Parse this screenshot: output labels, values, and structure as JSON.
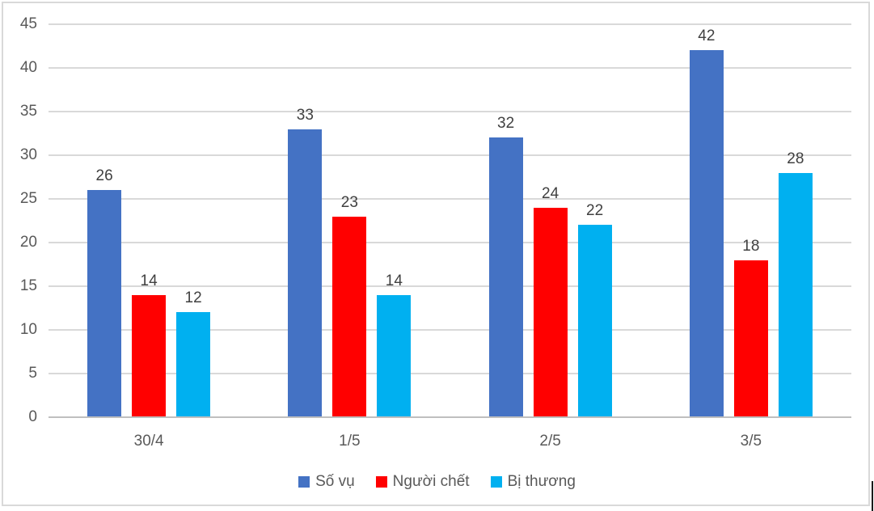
{
  "chart_data": {
    "type": "bar",
    "title": "",
    "xlabel": "",
    "ylabel": "",
    "categories": [
      "30/4",
      "1/5",
      "2/5",
      "3/5"
    ],
    "series": [
      {
        "name": "Số vụ",
        "color": "#4472C4",
        "values": [
          26,
          33,
          32,
          42
        ]
      },
      {
        "name": "Người chết",
        "color": "#FF0000",
        "values": [
          14,
          23,
          24,
          18
        ]
      },
      {
        "name": "Bị thương",
        "color": "#00B0F0",
        "values": [
          12,
          14,
          22,
          28
        ]
      }
    ],
    "ylim": [
      0,
      45
    ],
    "yticks": [
      0,
      5,
      10,
      15,
      20,
      25,
      30,
      35,
      40,
      45
    ],
    "grid": true,
    "data_labels": true,
    "legend_position": "bottom"
  },
  "colors": {
    "gridline": "#D9D9D9",
    "axis_line": "#BFBFBF",
    "axis_text": "#595959",
    "data_label_text": "#404040",
    "legend_text": "#595959",
    "chart_border": "#D9D9D9",
    "background": "#FFFFFF"
  }
}
